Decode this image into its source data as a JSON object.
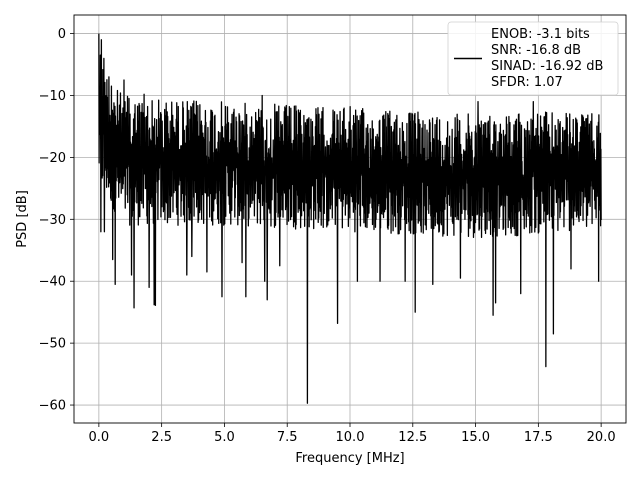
{
  "chart_data": {
    "type": "line",
    "title": "",
    "xlabel": "Frequency [MHz]",
    "ylabel": "PSD [dB]",
    "xlim": [
      -0.99,
      20.99
    ],
    "ylim": [
      -62.9,
      3.0
    ],
    "xticks": [
      0.0,
      2.5,
      5.0,
      7.5,
      10.0,
      12.5,
      15.0,
      17.5,
      20.0
    ],
    "xtick_labels": [
      "0.0",
      "2.5",
      "5.0",
      "7.5",
      "10.0",
      "12.5",
      "15.0",
      "17.5",
      "20.0"
    ],
    "yticks": [
      0,
      -10,
      -20,
      -30,
      -40,
      -50,
      -60
    ],
    "ytick_labels": [
      "0",
      "−10",
      "−20",
      "−30",
      "−40",
      "−50",
      "−60"
    ],
    "grid": true,
    "legend_position": "top-right",
    "legend_lines": [
      "ENOB: -3.1 bits",
      "SNR: -16.8 dB",
      "SINAD: -16.92 dB",
      "SFDR: 1.07"
    ],
    "series_color": "#000000",
    "series": [
      {
        "name": "ENOB: -3.1 bits\nSNR: -16.8 dB\nSINAD: -16.92 dB\nSFDR: 1.07",
        "x_start": 0.0,
        "x_end": 20.0,
        "band_upper": [
          [
            0.0,
            0.0
          ],
          [
            0.2,
            -4
          ],
          [
            0.5,
            -8
          ],
          [
            1.0,
            -10
          ],
          [
            2.5,
            -10.5
          ],
          [
            5.0,
            -11
          ],
          [
            7.5,
            -11.5
          ],
          [
            10.0,
            -12
          ],
          [
            12.5,
            -12.5
          ],
          [
            15.0,
            -13
          ],
          [
            17.5,
            -12.5
          ],
          [
            20.0,
            -13
          ]
        ],
        "band_lower": [
          [
            0.0,
            -25
          ],
          [
            1.0,
            -31
          ],
          [
            5.0,
            -31
          ],
          [
            10.0,
            -32
          ],
          [
            15.0,
            -33
          ],
          [
            20.0,
            -32
          ]
        ],
        "dips": [
          [
            0.08,
            -32
          ],
          [
            0.22,
            -32
          ],
          [
            0.55,
            -36.5
          ],
          [
            0.65,
            -40.5
          ],
          [
            1.0,
            -36
          ],
          [
            1.3,
            -39
          ],
          [
            1.4,
            -44.3
          ],
          [
            2.0,
            -41
          ],
          [
            2.2,
            -43.8
          ],
          [
            2.25,
            -43.9
          ],
          [
            3.5,
            -39
          ],
          [
            3.7,
            -36
          ],
          [
            4.3,
            -38.5
          ],
          [
            4.9,
            -42.5
          ],
          [
            5.7,
            -37
          ],
          [
            5.85,
            -42.5
          ],
          [
            6.6,
            -40
          ],
          [
            6.7,
            -43
          ],
          [
            7.2,
            -37.5
          ],
          [
            8.3,
            -59.7
          ],
          [
            9.5,
            -46.8
          ],
          [
            10.3,
            -40
          ],
          [
            11.2,
            -40
          ],
          [
            12.2,
            -40
          ],
          [
            12.6,
            -45
          ],
          [
            13.3,
            -40.5
          ],
          [
            14.4,
            -39.5
          ],
          [
            15.7,
            -45.5
          ],
          [
            15.8,
            -43.5
          ],
          [
            16.8,
            -42
          ],
          [
            17.3,
            -43.5
          ],
          [
            17.8,
            -53.8
          ],
          [
            18.1,
            -48.5
          ],
          [
            18.8,
            -38
          ],
          [
            19.9,
            -40
          ]
        ],
        "peaks": [
          [
            0.0,
            0.0
          ],
          [
            0.1,
            -1
          ],
          [
            0.2,
            -4
          ],
          [
            0.4,
            -7
          ],
          [
            0.5,
            -8.5
          ],
          [
            1.0,
            -7.5
          ],
          [
            1.2,
            -10.5
          ],
          [
            1.8,
            -9.8
          ],
          [
            6.5,
            -10
          ],
          [
            10.0,
            -11.8
          ],
          [
            15.1,
            -11
          ],
          [
            17.3,
            -11
          ]
        ]
      }
    ]
  }
}
